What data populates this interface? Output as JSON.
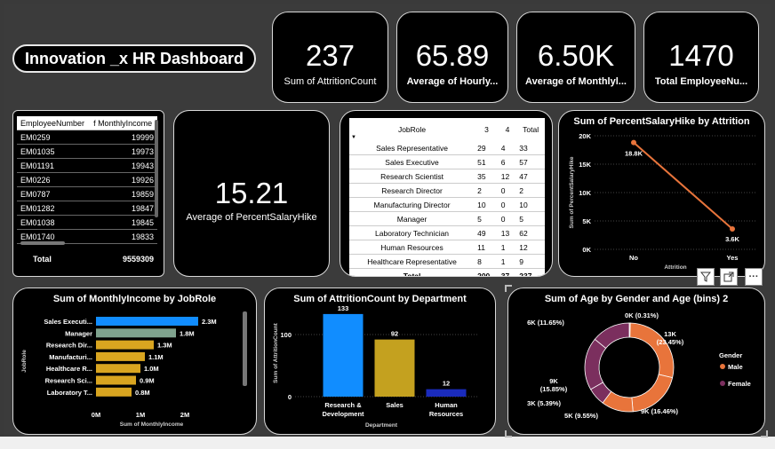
{
  "dashboard": {
    "title": "Innovation _x HR Dashboard"
  },
  "kpis": [
    {
      "value": "237",
      "label": "Sum of AttritionCount"
    },
    {
      "value": "65.89",
      "label": "Average of Hourly..."
    },
    {
      "value": "6.50K",
      "label": "Average of Monthlyl..."
    },
    {
      "value": "1470",
      "label": "Total EmployeeNu..."
    }
  ],
  "salary_hike_kpi": {
    "value": "15.21",
    "label": "Average of PercentSalaryHike"
  },
  "employee_table": {
    "headers": [
      "EmployeeNumber",
      "f MonthlyIncome"
    ],
    "rows": [
      [
        "EM0259",
        "19999"
      ],
      [
        "EM01035",
        "19973"
      ],
      [
        "EM01191",
        "19943"
      ],
      [
        "EM0226",
        "19926"
      ],
      [
        "EM0787",
        "19859"
      ],
      [
        "EM01282",
        "19847"
      ],
      [
        "EM01038",
        "19845"
      ],
      [
        "EM01740",
        "19833"
      ]
    ],
    "total_label": "Total",
    "total_value": "9559309"
  },
  "jobrole_table": {
    "headers": [
      "JobRole",
      "3",
      "4",
      "Total"
    ],
    "rows": [
      [
        "Sales Representative",
        "29",
        "4",
        "33"
      ],
      [
        "Sales Executive",
        "51",
        "6",
        "57"
      ],
      [
        "Research Scientist",
        "35",
        "12",
        "47"
      ],
      [
        "Research Director",
        "2",
        "0",
        "2"
      ],
      [
        "Manufacturing Director",
        "10",
        "0",
        "10"
      ],
      [
        "Manager",
        "5",
        "0",
        "5"
      ],
      [
        "Laboratory Technician",
        "49",
        "13",
        "62"
      ],
      [
        "Human Resources",
        "11",
        "1",
        "12"
      ],
      [
        "Healthcare Representative",
        "8",
        "1",
        "9"
      ]
    ],
    "total": [
      "Total",
      "200",
      "37",
      "237"
    ]
  },
  "line_chart": {
    "title": "Sum of PercentSalaryHike by Attrition",
    "chart_data": {
      "type": "line",
      "x": [
        "No",
        "Yes"
      ],
      "values": [
        18800,
        3600
      ],
      "data_labels": [
        "18.8K",
        "3.6K"
      ],
      "yticks": [
        "0K",
        "5K",
        "10K",
        "15K",
        "20K"
      ],
      "ylim": [
        0,
        20000
      ],
      "xlabel": "Attrition",
      "ylabel": "Sum of PercentSalaryHike",
      "color": "#e8743b"
    }
  },
  "hbar_chart": {
    "title": "Sum of MonthlyIncome by JobRole",
    "chart_data": {
      "type": "bar",
      "categories": [
        "Sales Executi...",
        "Manager",
        "Research Dir...",
        "Manufacturi...",
        "Healthcare R...",
        "Research Sci...",
        "Laboratory T..."
      ],
      "values": [
        2.3,
        1.8,
        1.3,
        1.1,
        1.0,
        0.9,
        0.8
      ],
      "data_labels": [
        "2.3M",
        "1.8M",
        "1.3M",
        "1.1M",
        "1.0M",
        "0.9M",
        "0.8M"
      ],
      "colors": [
        "#118dff",
        "#7fa38e",
        "#d9a520",
        "#d9a520",
        "#d9a520",
        "#d9a520",
        "#d9a520"
      ],
      "xticks": [
        "0M",
        "1M",
        "2M"
      ],
      "xlim": [
        0,
        2.5
      ],
      "xlabel": "Sum of MonthlyIncome",
      "ylabel": "JobRole"
    }
  },
  "vbar_chart": {
    "title": "Sum of AttritionCount by Department",
    "chart_data": {
      "type": "bar",
      "categories": [
        "Research & Development",
        "Sales",
        "Human Resources"
      ],
      "category_lines": [
        [
          "Research &",
          "Development"
        ],
        [
          "Sales"
        ],
        [
          "Human",
          "Resources"
        ]
      ],
      "values": [
        133,
        92,
        12
      ],
      "colors": [
        "#118dff",
        "#c4a11f",
        "#1a2bbd"
      ],
      "yticks": [
        "0",
        "100"
      ],
      "ylim": [
        0,
        140
      ],
      "xlabel": "Department",
      "ylabel": "Sum of AttritionCount"
    }
  },
  "donut_chart": {
    "title": "Sum of Age by Gender and Age (bins) 2",
    "chart_data": {
      "type": "pie",
      "slices": [
        {
          "label": "0K (0.31%)",
          "value": 0.31,
          "color": "#e8743b"
        },
        {
          "label": "13K (23.45%)",
          "value": 23.45,
          "color": "#e8743b"
        },
        {
          "label": "9K (16.46%)",
          "value": 16.46,
          "color": "#e8743b"
        },
        {
          "label": "5K (9.55%)",
          "value": 9.55,
          "color": "#e8743b"
        },
        {
          "label": "3K (5.39%)",
          "value": 5.39,
          "color": "#7b2f5e"
        },
        {
          "label": "9K (15.85%)",
          "value": 15.85,
          "color": "#7b2f5e"
        },
        {
          "label": "6K (11.65%)",
          "value": 11.65,
          "color": "#7b2f5e"
        }
      ],
      "legend_title": "Gender",
      "legend": [
        {
          "name": "Male",
          "color": "#e8743b"
        },
        {
          "name": "Female",
          "color": "#7b2f5e"
        }
      ]
    }
  },
  "visual_header": {
    "icons": [
      "filter-icon",
      "focus-mode-icon",
      "more-options-icon"
    ],
    "more_glyph": "···"
  }
}
